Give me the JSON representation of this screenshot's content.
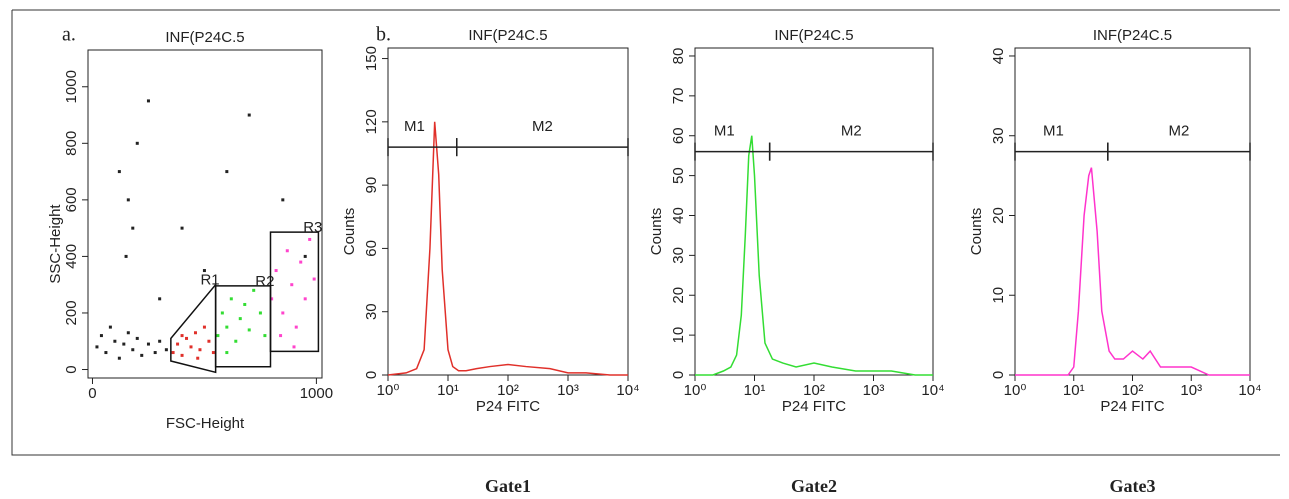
{
  "chart_data": [
    {
      "type": "scatter",
      "panel": "a.",
      "title": "INF(P24C.5",
      "xlabel": "FSC-Height",
      "ylabel": "SSC-Height",
      "xlim": [
        -20,
        1025
      ],
      "ylim": [
        -30,
        1130
      ],
      "xticks": [
        0,
        1000
      ],
      "yticks": [
        0,
        200,
        400,
        600,
        800,
        1000
      ],
      "series": [
        {
          "color": "#222222",
          "x": [
            20,
            40,
            60,
            80,
            100,
            120,
            140,
            160,
            180,
            200,
            220,
            250,
            280,
            300,
            330,
            150,
            160,
            200,
            250,
            120,
            400,
            500,
            600,
            700,
            850,
            950,
            300,
            180
          ],
          "y": [
            80,
            120,
            60,
            150,
            100,
            40,
            90,
            130,
            70,
            110,
            50,
            90,
            60,
            100,
            70,
            400,
            600,
            800,
            950,
            700,
            500,
            350,
            700,
            900,
            600,
            400,
            250,
            500
          ]
        },
        {
          "color": "#e0302a",
          "x": [
            360,
            380,
            400,
            420,
            440,
            460,
            480,
            500,
            520,
            540,
            400,
            470
          ],
          "y": [
            60,
            90,
            50,
            110,
            80,
            130,
            70,
            150,
            100,
            60,
            120,
            40
          ]
        },
        {
          "color": "#33dd33",
          "x": [
            560,
            580,
            600,
            620,
            640,
            660,
            680,
            700,
            720,
            750,
            770,
            600
          ],
          "y": [
            120,
            200,
            150,
            250,
            100,
            180,
            230,
            140,
            280,
            200,
            120,
            60
          ]
        },
        {
          "color": "#ff44cc",
          "x": [
            800,
            820,
            850,
            870,
            890,
            910,
            930,
            950,
            970,
            990,
            840,
            900
          ],
          "y": [
            250,
            350,
            200,
            420,
            300,
            150,
            380,
            250,
            460,
            320,
            120,
            80
          ]
        }
      ],
      "gates": [
        {
          "name": "R1",
          "x": [
            350,
            350,
            550,
            550
          ],
          "y": [
            30,
            110,
            300,
            -10
          ]
        },
        {
          "name": "R2",
          "x": [
            550,
            550,
            795,
            795
          ],
          "y": [
            10,
            296,
            296,
            10
          ]
        },
        {
          "name": "R3",
          "x": [
            795,
            795,
            1009,
            1009
          ],
          "y": [
            64,
            486,
            486,
            64
          ]
        }
      ]
    },
    {
      "type": "line",
      "panel": "b.",
      "title": "INF(P24C.5",
      "xlabel": "P24 FITC",
      "ylabel": "Counts",
      "caption": "Gate1",
      "log_x": true,
      "color": "#e0302a",
      "xlim": [
        1,
        10000
      ],
      "ylim": [
        0,
        155
      ],
      "xticks": [
        {
          "value": 1,
          "label": "10⁰"
        },
        {
          "value": 10,
          "label": "10¹"
        },
        {
          "value": 100,
          "label": "10²"
        },
        {
          "value": 1000,
          "label": "10³"
        },
        {
          "value": 10000,
          "label": "10⁴"
        }
      ],
      "yticks": [
        0,
        30,
        60,
        90,
        120,
        150
      ],
      "x": [
        1,
        2,
        3,
        4,
        5,
        6,
        7,
        8,
        10,
        12,
        15,
        20,
        30,
        50,
        100,
        200,
        500,
        1000,
        2000,
        5000,
        10000
      ],
      "values": [
        0,
        1,
        3,
        12,
        60,
        120,
        95,
        50,
        12,
        4,
        2,
        2,
        3,
        4,
        5,
        4,
        3,
        1,
        1,
        0,
        0
      ],
      "marker_level": 108,
      "markers": [
        {
          "name": "M1",
          "range": [
            1,
            14
          ]
        },
        {
          "name": "M2",
          "range": [
            14,
            10000
          ]
        }
      ]
    },
    {
      "type": "line",
      "title": "INF(P24C.5",
      "xlabel": "P24 FITC",
      "ylabel": "Counts",
      "caption": "Gate2",
      "log_x": true,
      "color": "#33dd33",
      "xlim": [
        1,
        10000
      ],
      "ylim": [
        0,
        82
      ],
      "xticks": [
        {
          "value": 1,
          "label": "10⁰"
        },
        {
          "value": 10,
          "label": "10¹"
        },
        {
          "value": 100,
          "label": "10²"
        },
        {
          "value": 1000,
          "label": "10³"
        },
        {
          "value": 10000,
          "label": "10⁴"
        }
      ],
      "yticks": [
        0,
        10,
        20,
        30,
        40,
        50,
        60,
        70,
        80
      ],
      "x": [
        1,
        2,
        3,
        4,
        5,
        6,
        7,
        8,
        9,
        10,
        12,
        15,
        20,
        30,
        50,
        100,
        200,
        500,
        1000,
        2000,
        5000,
        10000
      ],
      "values": [
        0,
        0,
        1,
        2,
        5,
        15,
        35,
        55,
        60,
        50,
        25,
        8,
        4,
        3,
        2,
        3,
        2,
        1,
        1,
        1,
        0,
        0
      ],
      "marker_level": 56,
      "markers": [
        {
          "name": "M1",
          "range": [
            1,
            18
          ]
        },
        {
          "name": "M2",
          "range": [
            18,
            10000
          ]
        }
      ]
    },
    {
      "type": "line",
      "title": "INF(P24C.5",
      "xlabel": "P24 FITC",
      "ylabel": "Counts",
      "caption": "Gate3",
      "log_x": true,
      "color": "#ff33cc",
      "xlim": [
        1,
        10000
      ],
      "ylim": [
        0,
        41
      ],
      "xticks": [
        {
          "value": 1,
          "label": "10⁰"
        },
        {
          "value": 10,
          "label": "10¹"
        },
        {
          "value": 100,
          "label": "10²"
        },
        {
          "value": 1000,
          "label": "10³"
        },
        {
          "value": 10000,
          "label": "10⁴"
        }
      ],
      "yticks": [
        0,
        10,
        20,
        30,
        40
      ],
      "x": [
        1,
        5,
        8,
        10,
        12,
        15,
        18,
        20,
        25,
        30,
        40,
        50,
        70,
        100,
        150,
        200,
        300,
        500,
        1000,
        2000,
        10000
      ],
      "values": [
        0,
        0,
        0,
        1,
        8,
        20,
        25,
        26,
        18,
        8,
        3,
        2,
        2,
        3,
        2,
        3,
        1,
        1,
        1,
        0,
        0
      ],
      "marker_level": 28,
      "markers": [
        {
          "name": "M1",
          "range": [
            1,
            38
          ]
        },
        {
          "name": "M2",
          "range": [
            38,
            10000
          ]
        }
      ]
    }
  ]
}
